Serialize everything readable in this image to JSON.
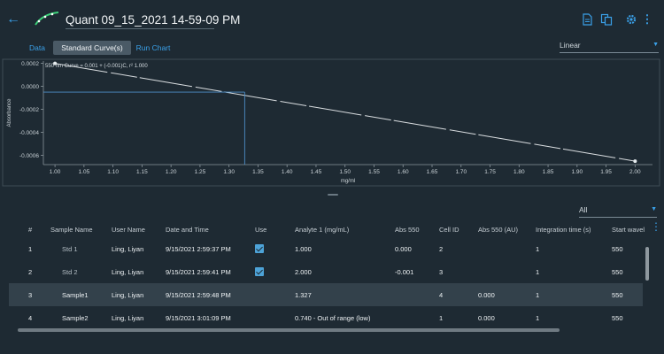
{
  "header": {
    "title": "Quant 09_15_2021 14-59-09 PM",
    "icons": [
      "back-arrow-icon",
      "curve-logo-icon",
      "document-icon",
      "copy-icon",
      "gear-icon",
      "more-vertical-icon"
    ]
  },
  "tabs": [
    {
      "label": "Data",
      "active": false
    },
    {
      "label": "Standard Curve(s)",
      "active": true
    },
    {
      "label": "Run Chart",
      "active": false
    }
  ],
  "fit_dropdown": {
    "value": "Linear"
  },
  "chart_data": {
    "type": "line",
    "equation": "550 nm Curve = 0.001 + (-0.001)C,  r² 1.000",
    "xlabel": "mg/ml",
    "ylabel": "Absorbance",
    "xlim": [
      0.98,
      2.03
    ],
    "ylim": [
      -0.00068,
      0.00022
    ],
    "x_ticks": [
      "1.00",
      "1.05",
      "1.10",
      "1.15",
      "1.20",
      "1.25",
      "1.30",
      "1.35",
      "1.40",
      "1.45",
      "1.50",
      "1.55",
      "1.60",
      "1.65",
      "1.70",
      "1.75",
      "1.80",
      "1.85",
      "1.90",
      "1.95",
      "2.00"
    ],
    "y_ticks": [
      "0.0002",
      "0.0000",
      "-0.0002",
      "-0.0004",
      "-0.0006"
    ],
    "y_tick_values": [
      0.0002,
      0.0,
      -0.0002,
      -0.0004,
      -0.0006
    ],
    "series": [
      {
        "x": [
          1.0,
          2.0
        ],
        "y": [
          0.0002,
          -0.00065
        ]
      }
    ],
    "marker": {
      "x": 1.327,
      "y": -5e-05
    },
    "grid": false
  },
  "filter_dropdown": {
    "value": "All"
  },
  "table": {
    "columns": [
      "#",
      "Sample Name",
      "User Name",
      "Date and Time",
      "Use",
      "Analyte 1 (mg/mL)",
      "Abs 550",
      "Cell ID",
      "Abs 550 (AU)",
      "Integration time (s)",
      "Start wavel"
    ],
    "rows": [
      {
        "num": "1",
        "sample": "Std 1",
        "user": "Ling, Liyan",
        "datetime": "9/15/2021 2:59:37 PM",
        "use": true,
        "analyte": "1.000",
        "abs550": "0.000",
        "cell": "2",
        "absau": "",
        "integration": "1",
        "start": "550",
        "selected": false
      },
      {
        "num": "2",
        "sample": "Std 2",
        "user": "Ling, Liyan",
        "datetime": "9/15/2021 2:59:41 PM",
        "use": true,
        "analyte": "2.000",
        "abs550": "-0.001",
        "cell": "3",
        "absau": "",
        "integration": "1",
        "start": "550",
        "selected": false
      },
      {
        "num": "3",
        "sample": "Sample1",
        "user": "Ling, Liyan",
        "datetime": "9/15/2021 2:59:48 PM",
        "use": false,
        "analyte": "1.327",
        "abs550": "",
        "cell": "4",
        "absau": "0.000",
        "integration": "1",
        "start": "550",
        "selected": true
      },
      {
        "num": "4",
        "sample": "Sample2",
        "user": "Ling, Liyan",
        "datetime": "9/15/2021 3:01:09 PM",
        "use": false,
        "analyte": "0.740 - Out of range (low)",
        "abs550": "",
        "cell": "1",
        "absau": "0.000",
        "integration": "1",
        "start": "550",
        "selected": false
      }
    ]
  },
  "colors": {
    "background": "#1e2a33",
    "accent": "#3aa0e8",
    "selected_row": "#33414b",
    "curve": "#d9dde0"
  }
}
